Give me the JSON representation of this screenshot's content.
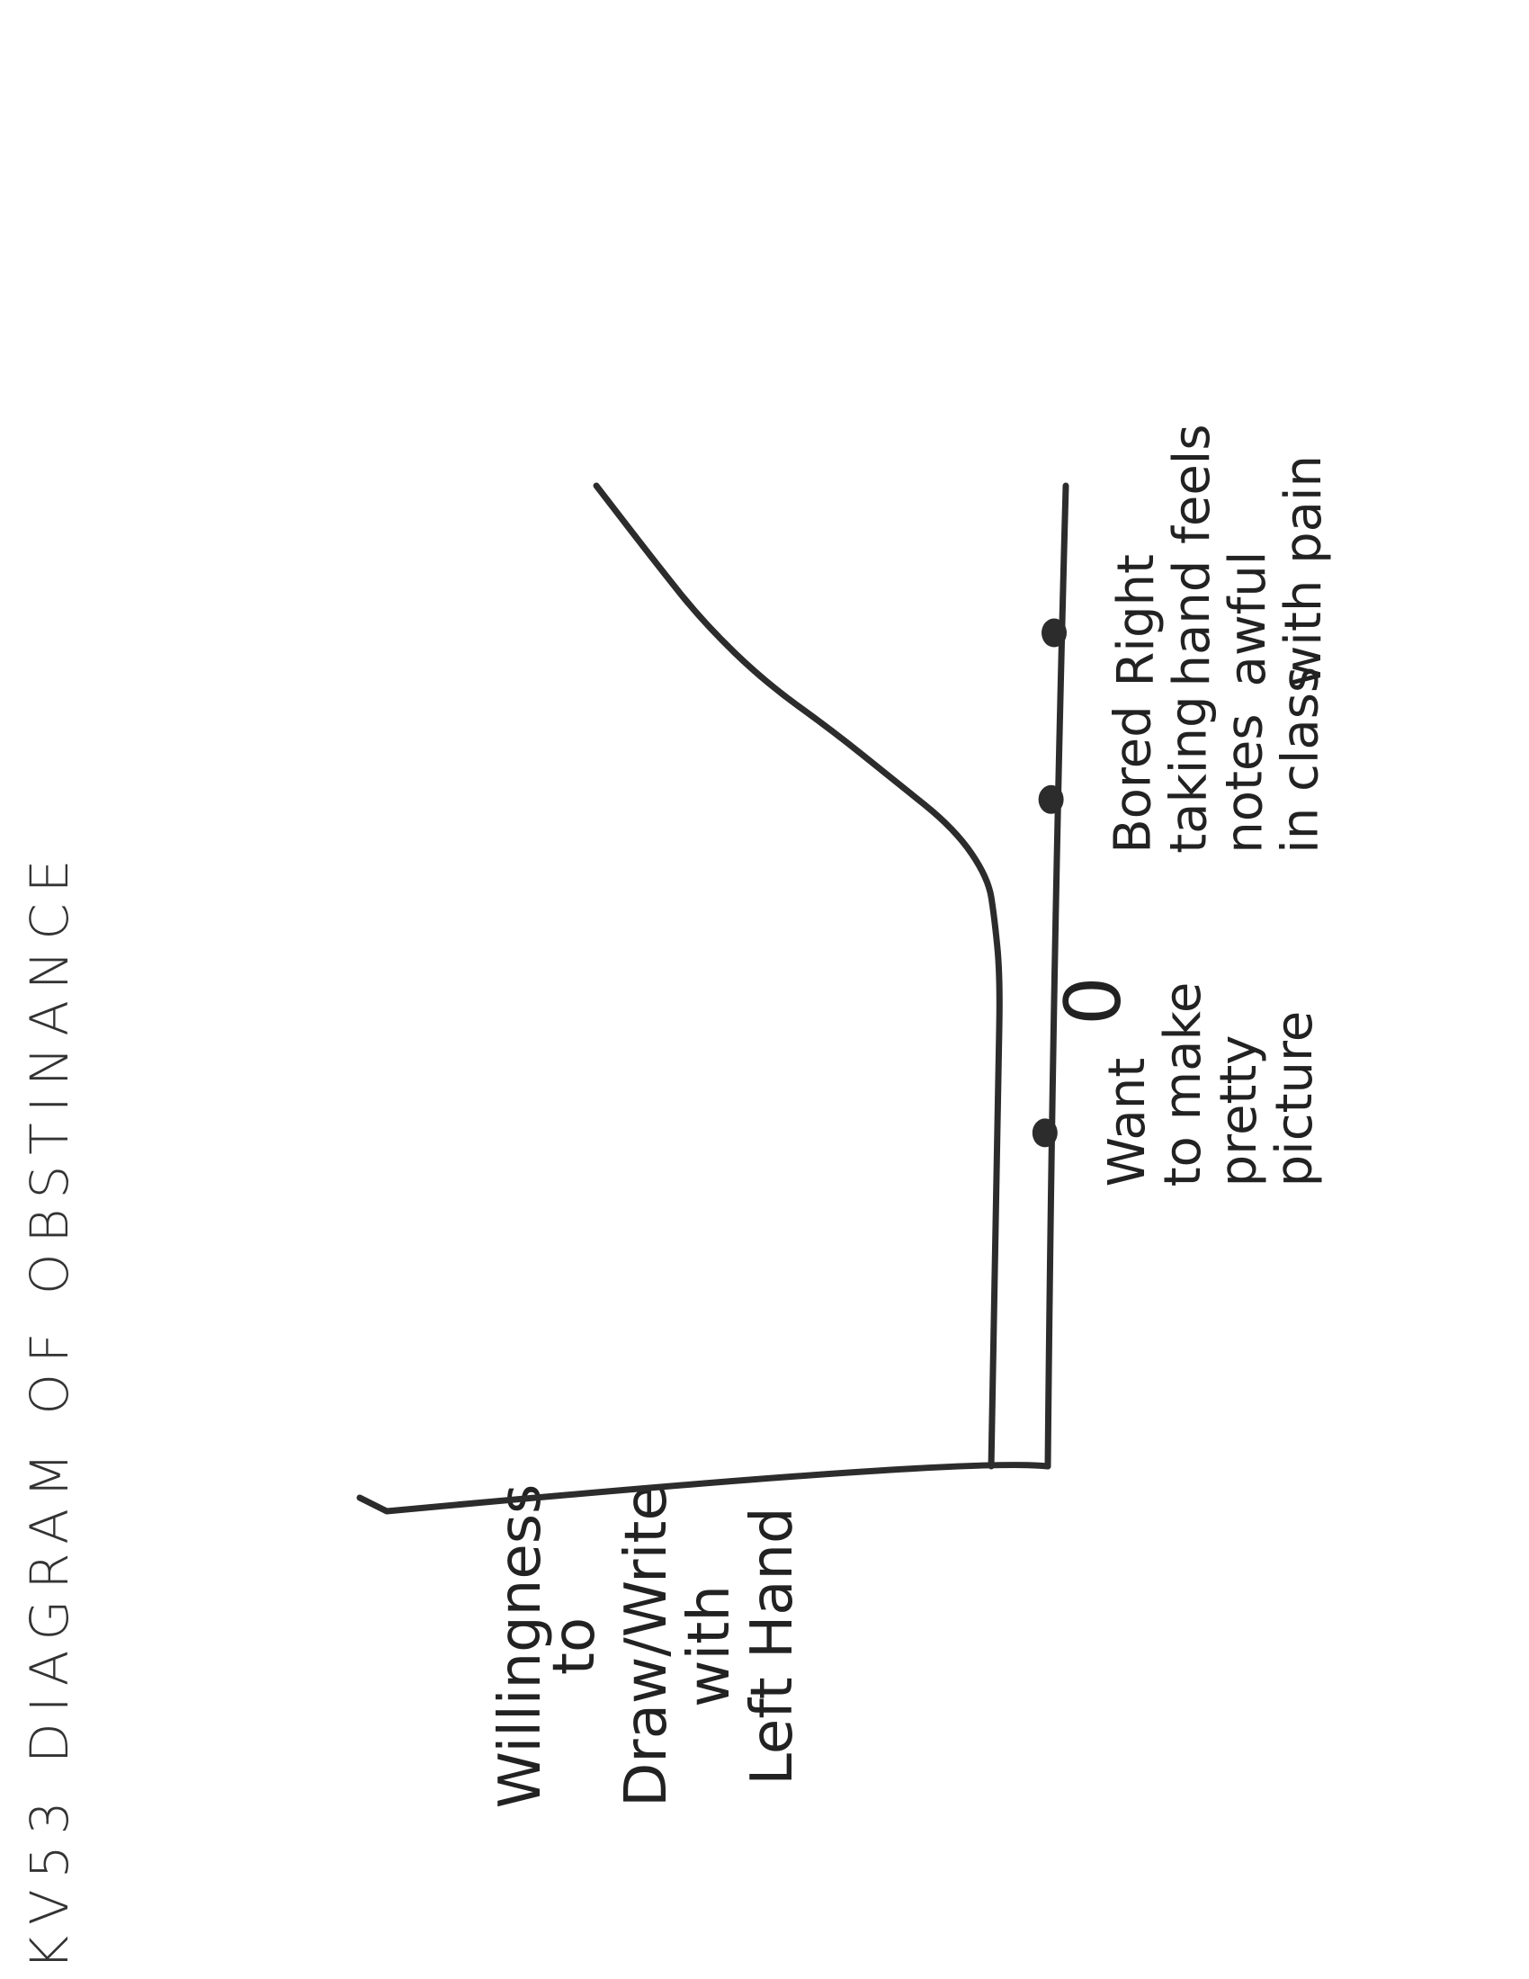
{
  "chart_data": {
    "type": "line",
    "title": "KV53 DIAGRAM OF OBSTINANCE",
    "ylabel": [
      "Willingness",
      "to",
      "Draw/Write",
      "with",
      "Left Hand"
    ],
    "origin_label": "0",
    "orientation": "rotated-90-clockwise",
    "xlim": [
      0,
      1
    ],
    "ylim": [
      0,
      1
    ],
    "events": [
      {
        "x": 0.34,
        "lines": [
          "Want",
          "to make",
          "pretty",
          "picture"
        ]
      },
      {
        "x": 0.68,
        "lines": [
          "Bored",
          "taking",
          "notes",
          "in class"
        ]
      },
      {
        "x": 0.85,
        "lines": [
          "Right",
          "hand feels",
          "awful",
          "with pain"
        ]
      }
    ],
    "series": [
      {
        "x": [
          0.0,
          0.05,
          0.12,
          0.2,
          0.3,
          0.4,
          0.5,
          0.56,
          0.6,
          0.65,
          0.7,
          0.75,
          0.8,
          0.86,
          0.92,
          1.0
        ],
        "y": [
          0.03,
          0.03,
          0.03,
          0.03,
          0.03,
          0.03,
          0.03,
          0.04,
          0.05,
          0.1,
          0.19,
          0.28,
          0.38,
          0.47,
          0.54,
          0.63
        ]
      }
    ]
  }
}
